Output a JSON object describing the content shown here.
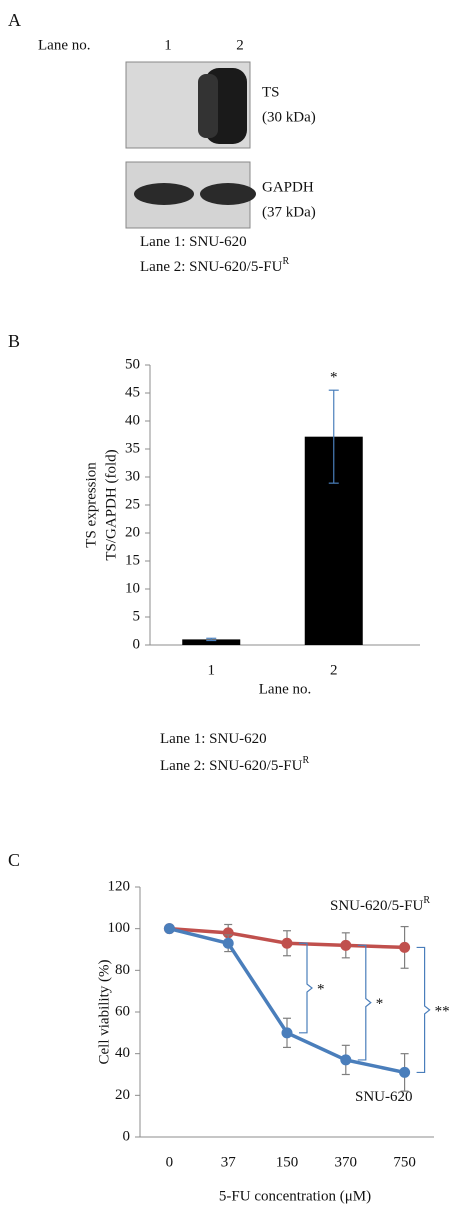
{
  "blot": {
    "panel": "A",
    "lane_label": "Lane no.",
    "lanes": [
      "1",
      "2"
    ],
    "bands": [
      {
        "name": "TS",
        "size": "(30 kDa)"
      },
      {
        "name": "GAPDH",
        "size": "(37 kDa)"
      }
    ],
    "legend": [
      {
        "text": "Lane 1: SNU-620"
      },
      {
        "text": "Lane 2: SNU-620/5-FU",
        "sup": "R"
      }
    ]
  },
  "chart_data": [
    {
      "type": "bar",
      "panel": "B",
      "ylabel": [
        "TS expression",
        "TS/GAPDH (fold)"
      ],
      "xlabel": "Lane no.",
      "categories": [
        "1",
        "2"
      ],
      "values": [
        1,
        37.2
      ],
      "errors": [
        0.2,
        8.3
      ],
      "color": "#000000",
      "error_color": "#4a7ebb",
      "ylim": [
        0,
        50
      ],
      "yticks": [
        0,
        5,
        10,
        15,
        20,
        25,
        30,
        35,
        40,
        45,
        50
      ],
      "grid": false,
      "annotations": [
        {
          "category": "2",
          "text": "*"
        }
      ],
      "notes": [
        {
          "text": "Lane 1: SNU-620"
        },
        {
          "text": "Lane 2: SNU-620/5-FU",
          "sup": "R"
        }
      ]
    },
    {
      "type": "line",
      "panel": "C",
      "ylabel": "Cell viability (%)",
      "xlabel": "5-FU concentration (μM)",
      "categories": [
        "0",
        "37",
        "150",
        "370",
        "750"
      ],
      "series": [
        {
          "name": "SNU-620/5-FU",
          "name_sup": "R",
          "color": "#c0504d",
          "values": [
            100,
            98,
            93,
            92,
            91
          ],
          "errors": [
            0,
            4,
            6,
            6,
            10
          ]
        },
        {
          "name": "SNU-620",
          "color": "#4a7ebb",
          "values": [
            100,
            93,
            50,
            37,
            31
          ],
          "errors": [
            0,
            4,
            7,
            7,
            9
          ]
        }
      ],
      "ylim": [
        0,
        120
      ],
      "yticks": [
        0,
        20,
        40,
        60,
        80,
        100,
        120
      ],
      "grid": false,
      "annotations": [
        {
          "category": "150",
          "text": "*"
        },
        {
          "category": "370",
          "text": "*"
        },
        {
          "category": "750",
          "text": "**"
        }
      ]
    }
  ]
}
